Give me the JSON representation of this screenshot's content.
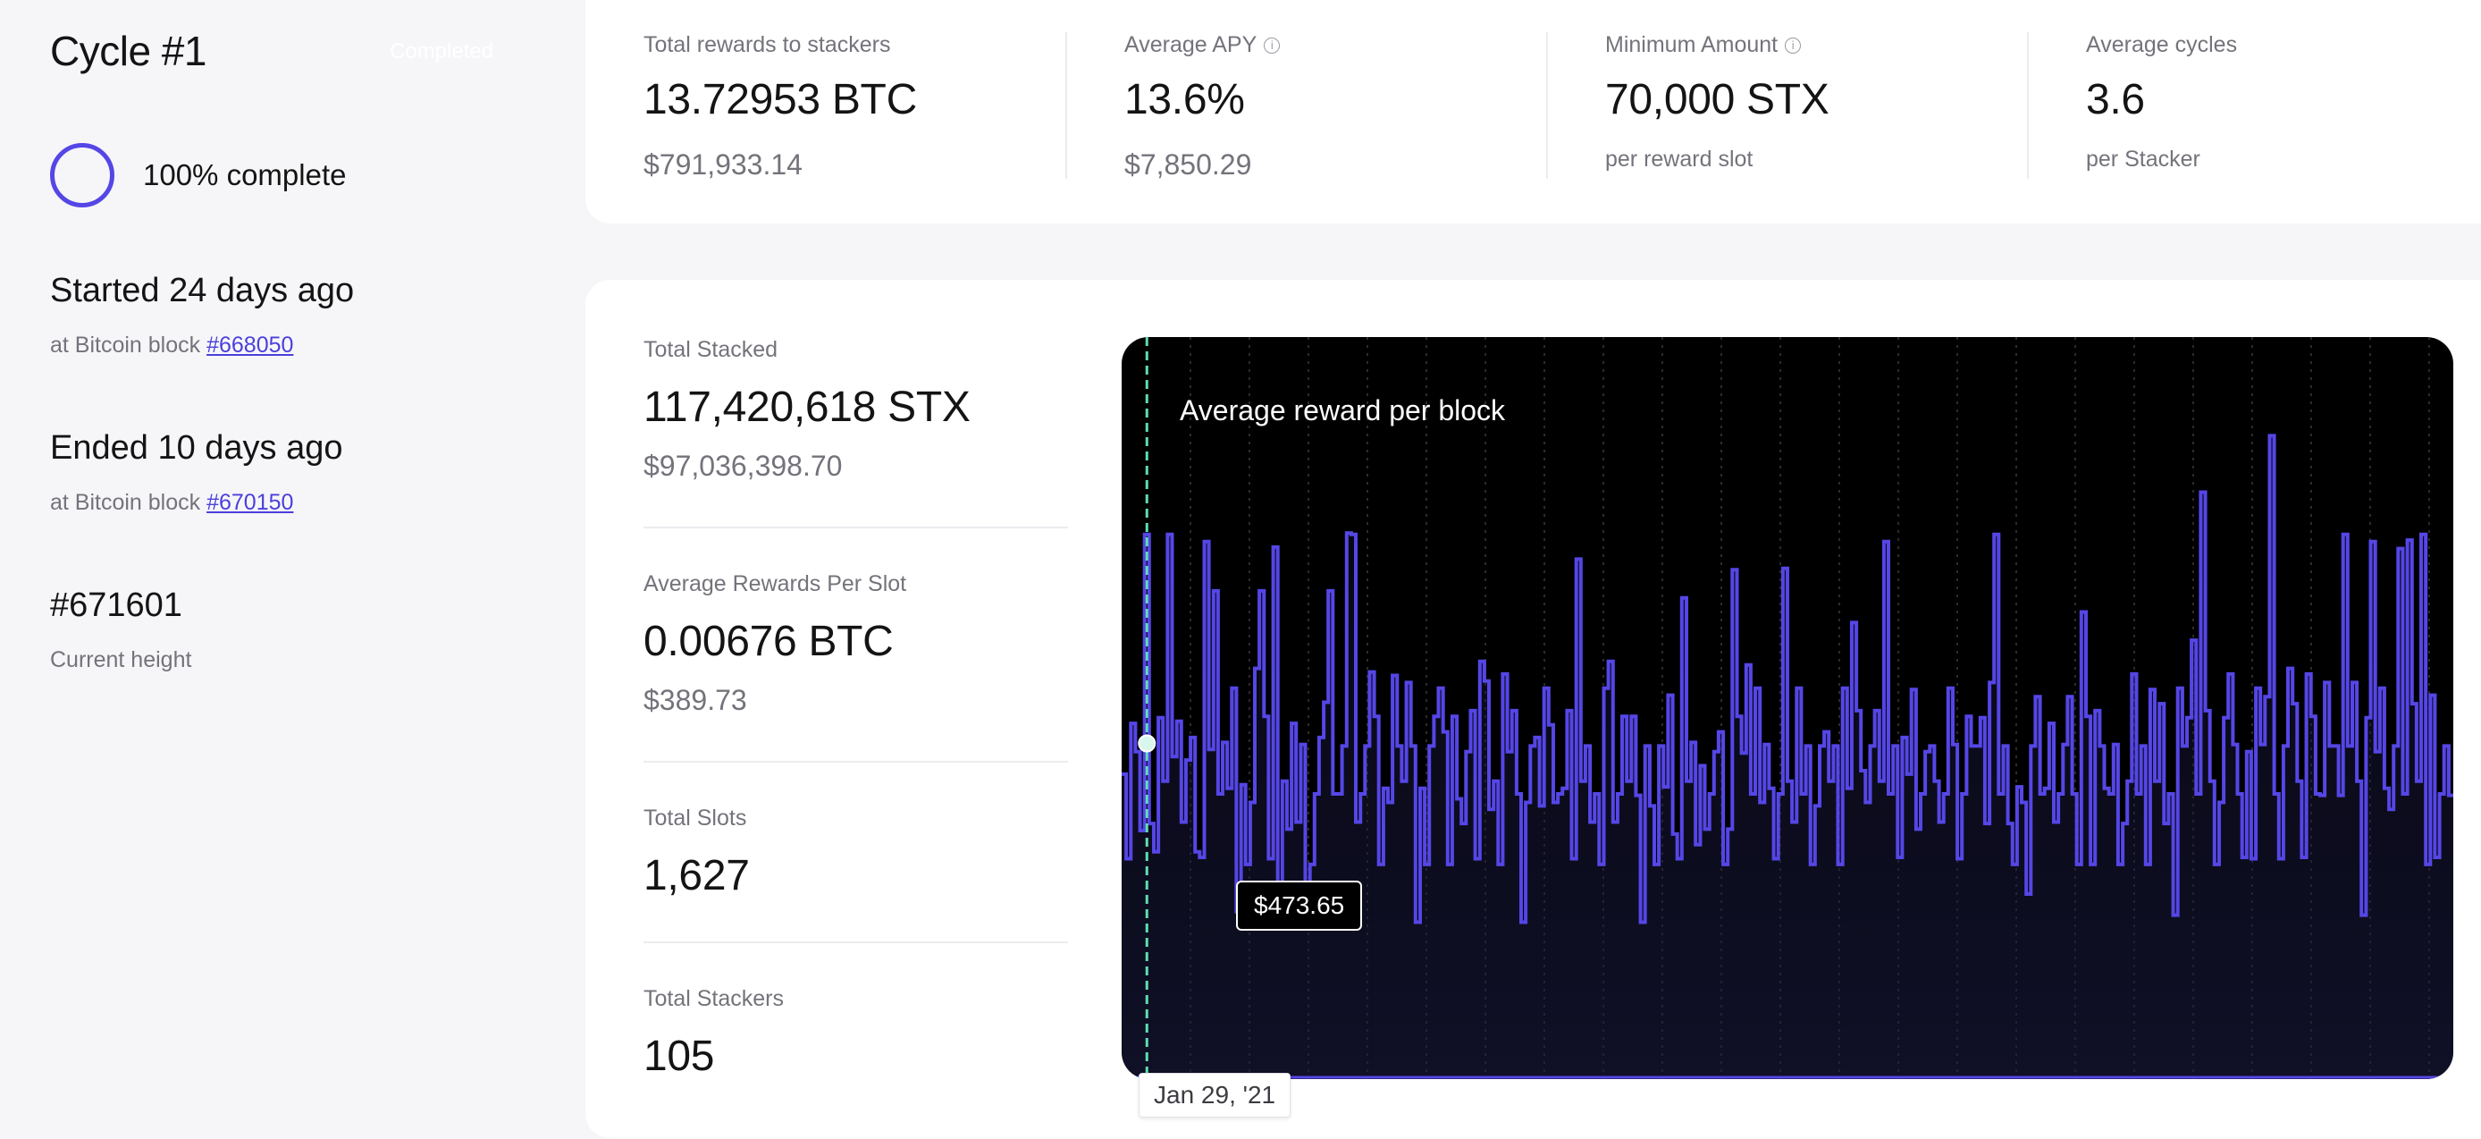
{
  "cycle": {
    "title": "Cycle #1",
    "status": "Completed",
    "progress_label": "100% complete",
    "progress_percent": 100
  },
  "start": {
    "heading": "Started 24 days ago",
    "block_prefix": "at Bitcoin block",
    "block_link": "#668050"
  },
  "end": {
    "heading": "Ended 10 days ago",
    "block_prefix": "at Bitcoin block",
    "block_link": "#670150"
  },
  "height": {
    "value": "#671601",
    "label": "Current height"
  },
  "metrics": [
    {
      "label": "Total rewards to stackers",
      "value": "13.72953 BTC",
      "sub": "$791,933.14"
    },
    {
      "label": "Average APY",
      "value": "13.6%",
      "sub": "$7,850.29",
      "icon": "info-icon"
    },
    {
      "label": "Minimum Amount",
      "value": "70,000 STX",
      "sub": "per reward slot",
      "icon": "info-icon"
    },
    {
      "label": "Average cycles",
      "value": "3.6",
      "sub": "per Stacker"
    }
  ],
  "stats": [
    {
      "label": "Total Stacked",
      "value": "117,420,618 STX",
      "sub": "$97,036,398.70"
    },
    {
      "label": "Average Rewards Per Slot",
      "value": "0.00676 BTC",
      "sub": "$389.73"
    },
    {
      "label": "Total Slots",
      "value": "1,627"
    },
    {
      "label": "Total Stackers",
      "value": "105"
    }
  ],
  "chart": {
    "title": "Average reward per block",
    "tooltip_value": "$473.65",
    "hover_date": "Jan 29, '21",
    "line_color": "#5546e6",
    "cursor_color": "#5de0b2"
  },
  "chart_data": {
    "type": "line",
    "title": "Average reward per block",
    "xlabel": "",
    "ylabel": "",
    "ylim": [
      0,
      1050
    ],
    "grid": "vertical dotted",
    "highlight": {
      "x": 5,
      "value": 473.65,
      "label": "$473.65",
      "date": "Jan 29, '21"
    },
    "series": [
      {
        "values": [
          430,
          310,
          502,
          462,
          350,
          770,
          360,
          320,
          510,
          420,
          770,
          455,
          505,
          362,
          450,
          482,
          320,
          312,
          760,
          465,
          690,
          402,
          475,
          410,
          552,
          235,
          415,
          302,
          390,
          580,
          690,
          512,
          310,
          752,
          220,
          420,
          352,
          502,
          362,
          472,
          260,
          302,
          402,
          482,
          532,
          690,
          402,
          402,
          470,
          772,
          770,
          362,
          402,
          470,
          575,
          512,
          302,
          410,
          390,
          570,
          470,
          420,
          560,
          470,
          220,
          410,
          302,
          470,
          512,
          552,
          490,
          302,
          512,
          395,
          360,
          462,
          520,
          310,
          590,
          562,
          380,
          420,
          302,
          572,
          462,
          520,
          402,
          220,
          390,
          470,
          482,
          385,
          552,
          500,
          390,
          402,
          410,
          520,
          310,
          735,
          420,
          470,
          362,
          402,
          302,
          552,
          590,
          362,
          402,
          512,
          420,
          512,
          400,
          220,
          470,
          385,
          302,
          470,
          412,
          542,
          345,
          310,
          680,
          420,
          475,
          330,
          442,
          352,
          402,
          462,
          490,
          302,
          352,
          720,
          512,
          460,
          585,
          402,
          552,
          390,
          472,
          410,
          310,
          402,
          722,
          420,
          362,
          552,
          402,
          470,
          302,
          385,
          470,
          490,
          420,
          470,
          302,
          552,
          410,
          645,
          520,
          435,
          390,
          470,
          520,
          420,
          760,
          402,
          470,
          312,
          482,
          430,
          550,
          352,
          402,
          462,
          470,
          420,
          362,
          402,
          552,
          472,
          310,
          402,
          512,
          470,
          470,
          510,
          360,
          560,
          770,
          402,
          470,
          360,
          302,
          412,
          390,
          260,
          470,
          540,
          402,
          410,
          502,
          362,
          402,
          472,
          540,
          402,
          302,
          660,
          512,
          302,
          520,
          470,
          410,
          402,
          472,
          302,
          360,
          420,
          572,
          402,
          470,
          302,
          550,
          420,
          530,
          360,
          402,
          230,
          552,
          470,
          510,
          620,
          402,
          830,
          520,
          420,
          302,
          390,
          510,
          572,
          472,
          402,
          312,
          462,
          310,
          552,
          472,
          540,
          910,
          402,
          310,
          470,
          580,
          530,
          420,
          312,
          572,
          512,
          402,
          400,
          560,
          470,
          470,
          400,
          770,
          470,
          560,
          420,
          230,
          510,
          760,
          462,
          552,
          410,
          380,
          470,
          750,
          402,
          762,
          530,
          420,
          770,
          302,
          542,
          312,
          402,
          470,
          400
        ]
      }
    ]
  }
}
